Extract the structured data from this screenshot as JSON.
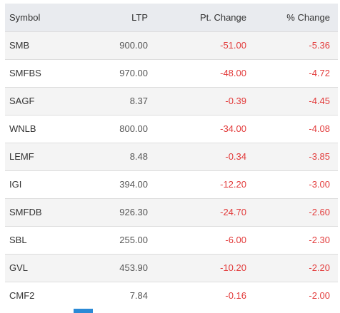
{
  "table": {
    "headers": {
      "symbol": "Symbol",
      "ltp": "LTP",
      "pt_change": "Pt. Change",
      "pct_change": "% Change"
    },
    "rows": [
      {
        "symbol": "SMB",
        "ltp": "900.00",
        "pt_change": "-51.00",
        "pct_change": "-5.36"
      },
      {
        "symbol": "SMFBS",
        "ltp": "970.00",
        "pt_change": "-48.00",
        "pct_change": "-4.72"
      },
      {
        "symbol": "SAGF",
        "ltp": "8.37",
        "pt_change": "-0.39",
        "pct_change": "-4.45"
      },
      {
        "symbol": "WNLB",
        "ltp": "800.00",
        "pt_change": "-34.00",
        "pct_change": "-4.08"
      },
      {
        "symbol": "LEMF",
        "ltp": "8.48",
        "pt_change": "-0.34",
        "pct_change": "-3.85"
      },
      {
        "symbol": "IGI",
        "ltp": "394.00",
        "pt_change": "-12.20",
        "pct_change": "-3.00"
      },
      {
        "symbol": "SMFDB",
        "ltp": "926.30",
        "pt_change": "-24.70",
        "pct_change": "-2.60"
      },
      {
        "symbol": "SBL",
        "ltp": "255.00",
        "pt_change": "-6.00",
        "pct_change": "-2.30"
      },
      {
        "symbol": "GVL",
        "ltp": "453.90",
        "pt_change": "-10.20",
        "pct_change": "-2.20"
      },
      {
        "symbol": "CMF2",
        "ltp": "7.84",
        "pt_change": "-0.16",
        "pct_change": "-2.00"
      }
    ]
  },
  "colors": {
    "negative": "#e23a3a",
    "header_bg": "#e9ebef",
    "accent": "#2b8ad6"
  }
}
